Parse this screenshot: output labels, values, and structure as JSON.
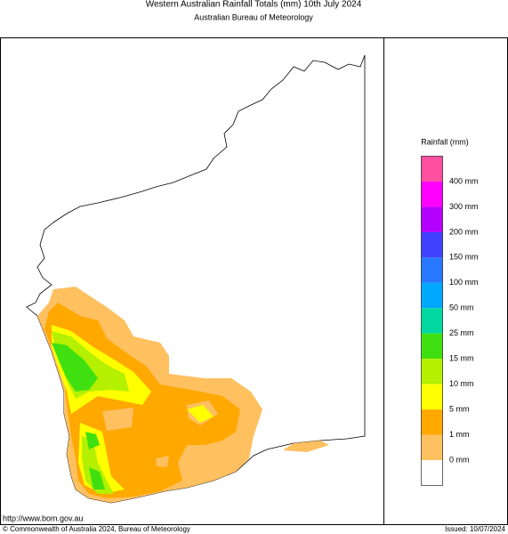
{
  "header": {
    "title": "Western Australian Rainfall Totals (mm) 10th July 2024",
    "subtitle": "Australian Bureau of Meteorology"
  },
  "legend": {
    "title": "Rainfall (mm)",
    "colors": [
      "#ff50a0",
      "#ff00ff",
      "#b400ff",
      "#4040ff",
      "#2878ff",
      "#00a8ff",
      "#00d8a0",
      "#40e010",
      "#b4f000",
      "#ffff00",
      "#ffa800",
      "#ffc060",
      "#ffffff"
    ],
    "labels": [
      "400 mm",
      "300 mm",
      "200 mm",
      "150 mm",
      "100 mm",
      "50 mm",
      "25 mm",
      "15 mm",
      "10 mm",
      "5 mm",
      "1 mm",
      "0 mm"
    ]
  },
  "footer": {
    "url": "http://www.bom.gov.au",
    "copyright": "© Commonwealth of Australia 2024, Bureau of Meteorology",
    "issued": "Issued: 10/07/2024"
  }
}
